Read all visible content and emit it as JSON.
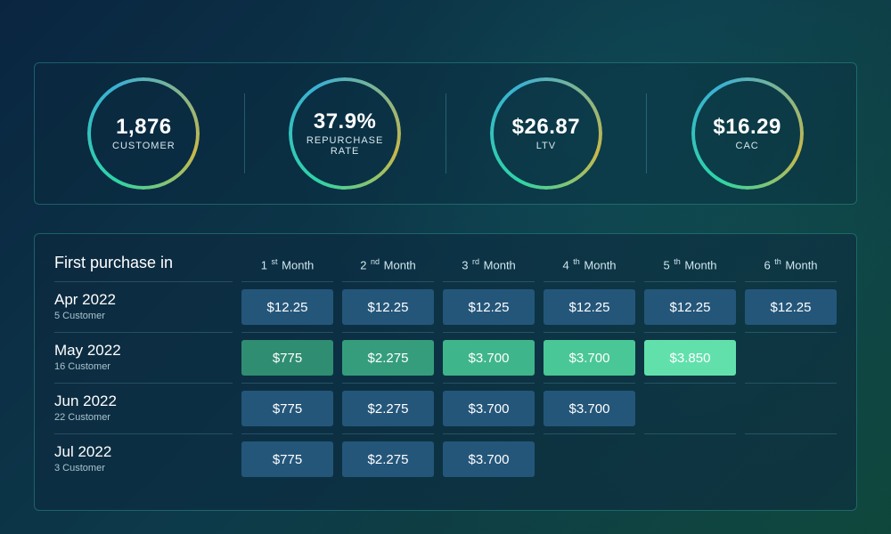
{
  "colors": {
    "background_start": "#0a2540",
    "background_end": "#0f4538",
    "panel_border": "rgba(60,200,180,0.35)",
    "divider": "rgba(120,180,200,0.25)",
    "cell_neutral": "#24567a",
    "cell_green_1": "#2f8d71",
    "cell_green_2": "#359d7c",
    "cell_green_3": "#3fb58b",
    "cell_green_4": "#4ac796",
    "cell_green_5": "#62e0ac",
    "text_primary": "#ffffff",
    "text_secondary": "#a9c4cf",
    "ring_gradient": [
      "#2dd4a7",
      "#3bb0d4",
      "#c9b84a"
    ]
  },
  "kpis": [
    {
      "value": "1,876",
      "label": "CUSTOMER"
    },
    {
      "value": "37.9%",
      "label": "REPURCHASE\nRATE"
    },
    {
      "value": "$26.87",
      "label": "LTV"
    },
    {
      "value": "$16.29",
      "label": "CAC"
    }
  ],
  "cohort": {
    "title": "First purchase in",
    "columns": [
      {
        "ordinal": "1",
        "suffix": "st",
        "word": "Month"
      },
      {
        "ordinal": "2",
        "suffix": "nd",
        "word": "Month"
      },
      {
        "ordinal": "3",
        "suffix": "rd",
        "word": "Month"
      },
      {
        "ordinal": "4",
        "suffix": "th",
        "word": "Month"
      },
      {
        "ordinal": "5",
        "suffix": "th",
        "word": "Month"
      },
      {
        "ordinal": "6",
        "suffix": "th",
        "word": "Month"
      }
    ],
    "rows": [
      {
        "title": "Apr 2022",
        "sub": "5 Customer",
        "cells": [
          {
            "value": "$12.25",
            "color": "#24567a"
          },
          {
            "value": "$12.25",
            "color": "#24567a"
          },
          {
            "value": "$12.25",
            "color": "#24567a"
          },
          {
            "value": "$12.25",
            "color": "#24567a"
          },
          {
            "value": "$12.25",
            "color": "#24567a"
          },
          {
            "value": "$12.25",
            "color": "#24567a"
          }
        ]
      },
      {
        "title": "May 2022",
        "sub": "16 Customer",
        "cells": [
          {
            "value": "$775",
            "color": "#2f8d71"
          },
          {
            "value": "$2.275",
            "color": "#359d7c"
          },
          {
            "value": "$3.700",
            "color": "#3fb58b"
          },
          {
            "value": "$3.700",
            "color": "#4ac796"
          },
          {
            "value": "$3.850",
            "color": "#62e0ac"
          },
          null
        ]
      },
      {
        "title": "Jun 2022",
        "sub": "22 Customer",
        "cells": [
          {
            "value": "$775",
            "color": "#24567a"
          },
          {
            "value": "$2.275",
            "color": "#24567a"
          },
          {
            "value": "$3.700",
            "color": "#24567a"
          },
          {
            "value": "$3.700",
            "color": "#24567a"
          },
          null,
          null
        ]
      },
      {
        "title": "Jul 2022",
        "sub": "3 Customer",
        "cells": [
          {
            "value": "$775",
            "color": "#24567a"
          },
          {
            "value": "$2.275",
            "color": "#24567a"
          },
          {
            "value": "$3.700",
            "color": "#24567a"
          },
          null,
          null,
          null
        ]
      }
    ]
  }
}
